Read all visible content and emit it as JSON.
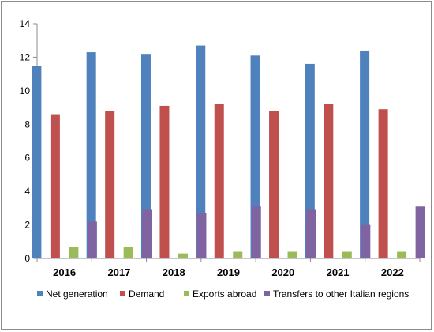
{
  "chart_data": {
    "type": "bar",
    "categories": [
      "2016",
      "2017",
      "2018",
      "2019",
      "2020",
      "2021",
      "2022"
    ],
    "series": [
      {
        "name": "Net generation",
        "color": "#4f81bd",
        "values": [
          11.5,
          12.3,
          12.2,
          12.7,
          12.1,
          11.6,
          12.4
        ]
      },
      {
        "name": "Demand",
        "color": "#c0504d",
        "values": [
          8.6,
          8.8,
          9.1,
          9.2,
          8.8,
          9.2,
          8.9
        ]
      },
      {
        "name": "Exports abroad",
        "color": "#9bbb59",
        "values": [
          0.7,
          0.7,
          0.3,
          0.4,
          0.4,
          0.4,
          0.4
        ]
      },
      {
        "name": "Transfers to other Italian regions",
        "color": "#8064a2",
        "values": [
          2.2,
          2.9,
          2.7,
          3.1,
          2.9,
          2.0,
          3.1
        ]
      }
    ],
    "yticks": [
      "0",
      "2",
      "4",
      "6",
      "8",
      "10",
      "12",
      "14"
    ],
    "ylim": [
      0,
      14
    ],
    "grid": false,
    "legend": "bottom"
  }
}
